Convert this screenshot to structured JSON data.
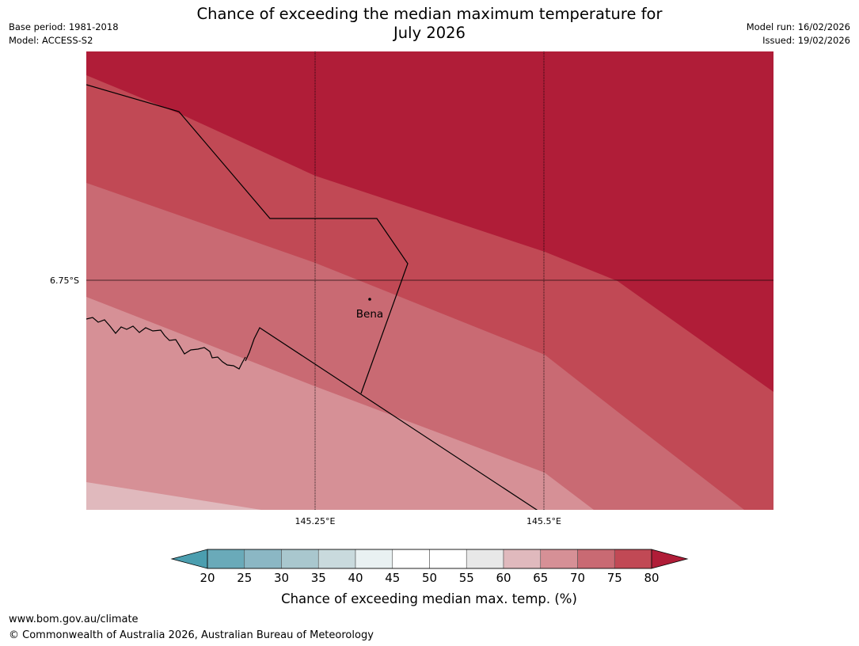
{
  "title": {
    "line1": "Chance of exceeding the median maximum temperature for",
    "line2": "July 2026"
  },
  "meta_left": {
    "base_period": "Base period: 1981-2018",
    "model": "Model: ACCESS-S2"
  },
  "meta_right": {
    "model_run": "Model run: 16/02/2026",
    "issued": "Issued: 19/02/2026"
  },
  "map": {
    "lat_label": "6.75°S",
    "lon_labels": [
      "145.25°E",
      "145.5°E"
    ],
    "town": "Bena",
    "band_colors": {
      "80+": "#b01d38",
      "75-80": "#c14955",
      "70-75": "#c96a73",
      "65-70": "#d69096",
      "60-65": "#e0b9bd"
    }
  },
  "colorbar": {
    "label": "Chance of exceeding median max. temp. (%)",
    "ticks": [
      "20",
      "25",
      "30",
      "35",
      "40",
      "45",
      "50",
      "55",
      "60",
      "65",
      "70",
      "75",
      "80"
    ],
    "under_color": "#4b9eaf",
    "over_color": "#b01d38",
    "colors": [
      "#6aaab9",
      "#8bb7c4",
      "#a9c7ce",
      "#c9dadd",
      "#e9f1f2",
      "#ffffff",
      "#ffffff",
      "#e8e8e8",
      "#e0b9bd",
      "#d69096",
      "#c96a73",
      "#c14955"
    ]
  },
  "footer": {
    "url": "www.bom.gov.au/climate",
    "copyright": "© Commonwealth of Australia 2026, Australian Bureau of Meteorology"
  }
}
